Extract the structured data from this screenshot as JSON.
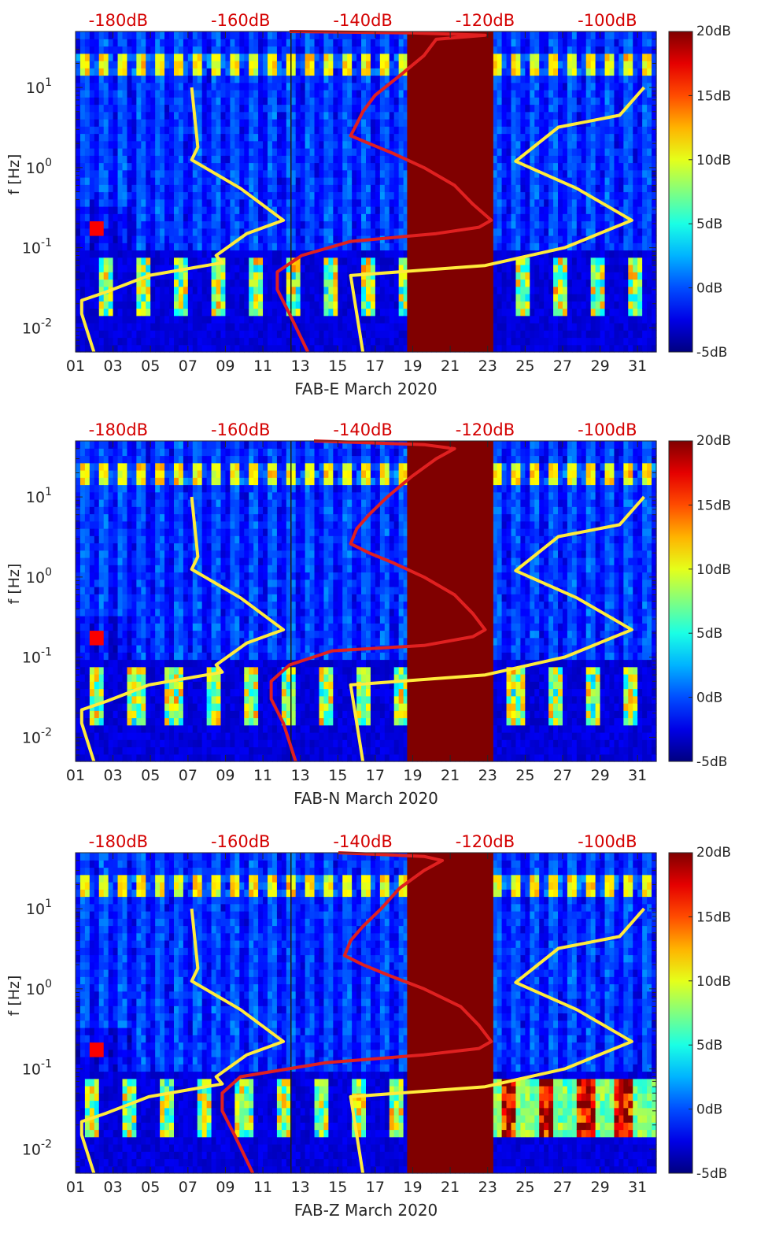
{
  "chart_data": [
    {
      "type": "heatmap",
      "xlabel": "FAB-E March 2020",
      "ylabel": "f [Hz]",
      "x_tick_labels": [
        "01",
        "03",
        "05",
        "07",
        "09",
        "11",
        "13",
        "15",
        "17",
        "19",
        "21",
        "23",
        "25",
        "27",
        "29",
        "31"
      ],
      "xlim": [
        1,
        32
      ],
      "y_scale": "log",
      "ylim": [
        0.005,
        50
      ],
      "y_tick_labels": [
        "10^-2",
        "10^-1",
        "10^0",
        "10^1"
      ],
      "top_axis_labels": [
        "-180dB",
        "-160dB",
        "-140dB",
        "-120dB",
        "-100dB"
      ],
      "top_axis_values": [
        -180,
        -160,
        -140,
        -120,
        -100
      ],
      "top_axis_range": [
        -187,
        -92
      ],
      "colorbar": {
        "colormap": "jet",
        "range": [
          -5,
          20
        ],
        "tick_labels": [
          "20dB",
          "15dB",
          "10dB",
          "5dB",
          "0dB",
          "-5dB"
        ]
      },
      "no_data_band": {
        "x": [
          18.7,
          23.3
        ],
        "color": "#800000"
      },
      "series": [
        {
          "color": "#ffeb3b",
          "x_axis": "top_dB",
          "points": [
            [
              -168,
              10
            ],
            [
              -167,
              1.8
            ],
            [
              -168,
              1.25
            ],
            [
              -160,
              0.55
            ],
            [
              -153,
              0.22
            ],
            [
              -159,
              0.15
            ],
            [
              -164,
              0.08
            ],
            [
              -163,
              0.065
            ],
            [
              -175,
              0.045
            ],
            [
              -182,
              0.028
            ],
            [
              -186,
              0.022
            ],
            [
              -186,
              0.015
            ],
            [
              -184,
              0.005
            ]
          ]
        },
        {
          "color": "#ffeb3b",
          "x_axis": "top_dB",
          "points": [
            [
              -140,
              0.005
            ],
            [
              -142,
              0.045
            ],
            [
              -120,
              0.06
            ],
            [
              -107,
              0.1
            ],
            [
              -96,
              0.22
            ],
            [
              -105,
              0.55
            ],
            [
              -115,
              1.2
            ],
            [
              -108,
              3.2
            ],
            [
              -98,
              4.5
            ],
            [
              -94,
              10
            ]
          ]
        },
        {
          "color": "#e02020",
          "x_axis": "top_dB",
          "points": [
            [
              -152,
              50
            ],
            [
              -132,
              48
            ],
            [
              -120,
              45
            ],
            [
              -128,
              40
            ],
            [
              -130,
              25
            ],
            [
              -134,
              14
            ],
            [
              -138,
              8
            ],
            [
              -140,
              5
            ],
            [
              -141,
              3.5
            ],
            [
              -142,
              2.5
            ],
            [
              -139,
              2
            ],
            [
              -135,
              1.5
            ],
            [
              -130,
              1
            ],
            [
              -125,
              0.6
            ],
            [
              -122,
              0.35
            ],
            [
              -119,
              0.22
            ],
            [
              -121,
              0.18
            ],
            [
              -128,
              0.15
            ],
            [
              -142,
              0.12
            ],
            [
              -150,
              0.08
            ],
            [
              -154,
              0.05
            ],
            [
              -154,
              0.03
            ],
            [
              -152,
              0.015
            ],
            [
              -149,
              0.005
            ]
          ]
        }
      ]
    },
    {
      "type": "heatmap",
      "xlabel": "FAB-N March 2020",
      "ylabel": "f [Hz]",
      "x_tick_labels": [
        "01",
        "03",
        "05",
        "07",
        "09",
        "11",
        "13",
        "15",
        "17",
        "19",
        "21",
        "23",
        "25",
        "27",
        "29",
        "31"
      ],
      "xlim": [
        1,
        32
      ],
      "y_scale": "log",
      "ylim": [
        0.005,
        50
      ],
      "y_tick_labels": [
        "10^-2",
        "10^-1",
        "10^0",
        "10^1"
      ],
      "top_axis_labels": [
        "-180dB",
        "-160dB",
        "-140dB",
        "-120dB",
        "-100dB"
      ],
      "top_axis_values": [
        -180,
        -160,
        -140,
        -120,
        -100
      ],
      "top_axis_range": [
        -187,
        -92
      ],
      "colorbar": {
        "colormap": "jet",
        "range": [
          -5,
          20
        ],
        "tick_labels": [
          "20dB",
          "15dB",
          "10dB",
          "5dB",
          "0dB",
          "-5dB"
        ]
      },
      "no_data_band": {
        "x": [
          18.7,
          23.3
        ],
        "color": "#800000"
      },
      "series": [
        {
          "color": "#ffeb3b",
          "x_axis": "top_dB",
          "points": [
            [
              -168,
              10
            ],
            [
              -167,
              1.8
            ],
            [
              -168,
              1.25
            ],
            [
              -160,
              0.55
            ],
            [
              -153,
              0.22
            ],
            [
              -159,
              0.15
            ],
            [
              -164,
              0.08
            ],
            [
              -163,
              0.065
            ],
            [
              -175,
              0.045
            ],
            [
              -182,
              0.028
            ],
            [
              -186,
              0.022
            ],
            [
              -186,
              0.015
            ],
            [
              -184,
              0.005
            ]
          ]
        },
        {
          "color": "#ffeb3b",
          "x_axis": "top_dB",
          "points": [
            [
              -140,
              0.005
            ],
            [
              -142,
              0.045
            ],
            [
              -120,
              0.06
            ],
            [
              -107,
              0.1
            ],
            [
              -96,
              0.22
            ],
            [
              -105,
              0.55
            ],
            [
              -115,
              1.2
            ],
            [
              -108,
              3.2
            ],
            [
              -98,
              4.5
            ],
            [
              -94,
              10
            ]
          ]
        },
        {
          "color": "#e02020",
          "x_axis": "top_dB",
          "points": [
            [
              -148,
              50
            ],
            [
              -130,
              45
            ],
            [
              -125,
              40
            ],
            [
              -128,
              30
            ],
            [
              -132,
              18
            ],
            [
              -136,
              10
            ],
            [
              -139,
              6
            ],
            [
              -141,
              4
            ],
            [
              -142,
              2.6
            ],
            [
              -139,
              2
            ],
            [
              -135,
              1.5
            ],
            [
              -130,
              1
            ],
            [
              -125,
              0.6
            ],
            [
              -122,
              0.35
            ],
            [
              -120,
              0.22
            ],
            [
              -122,
              0.18
            ],
            [
              -130,
              0.14
            ],
            [
              -145,
              0.12
            ],
            [
              -152,
              0.08
            ],
            [
              -155,
              0.05
            ],
            [
              -155,
              0.03
            ],
            [
              -153,
              0.015
            ],
            [
              -151,
              0.005
            ]
          ]
        }
      ]
    },
    {
      "type": "heatmap",
      "xlabel": "FAB-Z March 2020",
      "ylabel": "f [Hz]",
      "x_tick_labels": [
        "01",
        "03",
        "05",
        "07",
        "09",
        "11",
        "13",
        "15",
        "17",
        "19",
        "21",
        "23",
        "25",
        "27",
        "29",
        "31"
      ],
      "xlim": [
        1,
        32
      ],
      "y_scale": "log",
      "ylim": [
        0.005,
        50
      ],
      "y_tick_labels": [
        "10^-2",
        "10^-1",
        "10^0",
        "10^1"
      ],
      "top_axis_labels": [
        "-180dB",
        "-160dB",
        "-140dB",
        "-120dB",
        "-100dB"
      ],
      "top_axis_values": [
        -180,
        -160,
        -140,
        -120,
        -100
      ],
      "top_axis_range": [
        -187,
        -92
      ],
      "colorbar": {
        "colormap": "jet",
        "range": [
          -5,
          20
        ],
        "tick_labels": [
          "20dB",
          "15dB",
          "10dB",
          "5dB",
          "0dB",
          "-5dB"
        ]
      },
      "no_data_band": {
        "x": [
          18.7,
          23.3
        ],
        "color": "#800000"
      },
      "series": [
        {
          "color": "#ffeb3b",
          "x_axis": "top_dB",
          "points": [
            [
              -168,
              10
            ],
            [
              -167,
              1.8
            ],
            [
              -168,
              1.25
            ],
            [
              -160,
              0.55
            ],
            [
              -153,
              0.22
            ],
            [
              -159,
              0.15
            ],
            [
              -164,
              0.08
            ],
            [
              -163,
              0.065
            ],
            [
              -175,
              0.045
            ],
            [
              -182,
              0.028
            ],
            [
              -186,
              0.022
            ],
            [
              -186,
              0.015
            ],
            [
              -184,
              0.005
            ]
          ]
        },
        {
          "color": "#ffeb3b",
          "x_axis": "top_dB",
          "points": [
            [
              -140,
              0.005
            ],
            [
              -142,
              0.045
            ],
            [
              -120,
              0.06
            ],
            [
              -107,
              0.1
            ],
            [
              -96,
              0.22
            ],
            [
              -105,
              0.55
            ],
            [
              -115,
              1.2
            ],
            [
              -108,
              3.2
            ],
            [
              -98,
              4.5
            ],
            [
              -94,
              10
            ]
          ]
        },
        {
          "color": "#e02020",
          "x_axis": "top_dB",
          "points": [
            [
              -144,
              50
            ],
            [
              -130,
              45
            ],
            [
              -127,
              40
            ],
            [
              -130,
              30
            ],
            [
              -134,
              18
            ],
            [
              -137,
              10
            ],
            [
              -140,
              6
            ],
            [
              -142,
              4
            ],
            [
              -143,
              2.6
            ],
            [
              -140,
              2
            ],
            [
              -136,
              1.5
            ],
            [
              -130,
              1
            ],
            [
              -124,
              0.6
            ],
            [
              -121,
              0.35
            ],
            [
              -119,
              0.22
            ],
            [
              -121,
              0.18
            ],
            [
              -130,
              0.15
            ],
            [
              -146,
              0.12
            ],
            [
              -160,
              0.08
            ],
            [
              -163,
              0.05
            ],
            [
              -163,
              0.03
            ],
            [
              -161,
              0.015
            ],
            [
              -158,
              0.005
            ]
          ]
        }
      ]
    }
  ]
}
